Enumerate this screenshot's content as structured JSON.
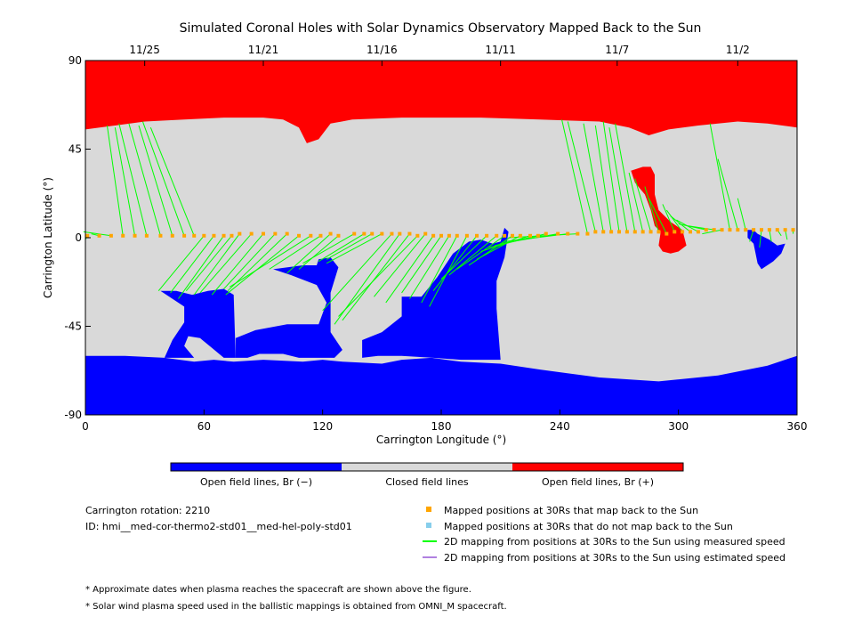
{
  "chart_data": {
    "type": "map",
    "title": "Simulated Coronal Holes with Solar Dynamics Observatory Mapped Back to the Sun",
    "xlabel": "Carrington Longitude (°)",
    "ylabel": "Carrington Latitude (°)",
    "xlim": [
      0,
      360
    ],
    "ylim": [
      -90,
      90
    ],
    "xticks": [
      0,
      60,
      120,
      180,
      240,
      300,
      360
    ],
    "yticks": [
      90,
      45,
      0,
      -45,
      -90
    ],
    "date_ticks": [
      {
        "label": "11/25",
        "lon": 30
      },
      {
        "label": "11/21",
        "lon": 90
      },
      {
        "label": "11/16",
        "lon": 150
      },
      {
        "label": "11/11",
        "lon": 210
      },
      {
        "label": "11/7",
        "lon": 269
      },
      {
        "label": "11/2",
        "lon": 330
      }
    ],
    "colors": {
      "open_negative": "#0000ff",
      "closed": "#d9d9d9",
      "open_positive": "#ff0000",
      "mapped_back": "#ffa500",
      "not_mapped": "#87ceeb",
      "measured_line": "#00ff00",
      "estimated_line": "#b080e0"
    },
    "regions": {
      "north_polar_boundary": [
        [
          0,
          55
        ],
        [
          15,
          57
        ],
        [
          30,
          59
        ],
        [
          50,
          60
        ],
        [
          70,
          61
        ],
        [
          90,
          61
        ],
        [
          100,
          60
        ],
        [
          108,
          56
        ],
        [
          112,
          48
        ],
        [
          118,
          50
        ],
        [
          124,
          58
        ],
        [
          135,
          60
        ],
        [
          160,
          61
        ],
        [
          200,
          61
        ],
        [
          230,
          60
        ],
        [
          260,
          59
        ],
        [
          275,
          56
        ],
        [
          285,
          52
        ],
        [
          295,
          55
        ],
        [
          310,
          57
        ],
        [
          330,
          59
        ],
        [
          345,
          58
        ],
        [
          360,
          56
        ]
      ],
      "south_polar_boundary": [
        [
          0,
          -60
        ],
        [
          20,
          -60
        ],
        [
          40,
          -61
        ],
        [
          55,
          -63
        ],
        [
          65,
          -62
        ],
        [
          75,
          -63
        ],
        [
          90,
          -62
        ],
        [
          110,
          -63
        ],
        [
          120,
          -62
        ],
        [
          130,
          -63
        ],
        [
          150,
          -64
        ],
        [
          160,
          -62
        ],
        [
          175,
          -61
        ],
        [
          190,
          -63
        ],
        [
          210,
          -64
        ],
        [
          230,
          -67
        ],
        [
          260,
          -71
        ],
        [
          290,
          -73
        ],
        [
          320,
          -70
        ],
        [
          345,
          -65
        ],
        [
          360,
          -60
        ]
      ],
      "negative_holes": [
        [
          [
            38,
            -27
          ],
          [
            46,
            -27
          ],
          [
            54,
            -29
          ],
          [
            62,
            -27
          ],
          [
            70,
            -26
          ],
          [
            75,
            -29
          ],
          [
            76,
            -61
          ],
          [
            70,
            -61
          ],
          [
            64,
            -56
          ],
          [
            58,
            -51
          ],
          [
            52,
            -50
          ],
          [
            50,
            -55
          ],
          [
            55,
            -61
          ],
          [
            40,
            -61
          ],
          [
            44,
            -52
          ],
          [
            50,
            -43
          ],
          [
            50,
            -35
          ]
        ],
        [
          [
            95,
            -16
          ],
          [
            110,
            -14
          ],
          [
            117,
            -14
          ],
          [
            118,
            -11
          ],
          [
            124,
            -10
          ],
          [
            128,
            -15
          ],
          [
            124,
            -28
          ],
          [
            124,
            -48
          ],
          [
            130,
            -57
          ],
          [
            126,
            -61
          ],
          [
            108,
            -61
          ],
          [
            100,
            -59
          ],
          [
            88,
            -59
          ],
          [
            82,
            -61
          ],
          [
            76,
            -61
          ],
          [
            76,
            -51
          ],
          [
            86,
            -47
          ],
          [
            102,
            -44
          ],
          [
            118,
            -44
          ],
          [
            122,
            -33
          ],
          [
            117,
            -24
          ],
          [
            104,
            -19
          ]
        ],
        [
          [
            160,
            -30
          ],
          [
            170,
            -30
          ],
          [
            178,
            -20
          ],
          [
            186,
            -8
          ],
          [
            194,
            -2
          ],
          [
            200,
            -1
          ],
          [
            206,
            -3
          ],
          [
            210,
            -2
          ],
          [
            212,
            5
          ],
          [
            214,
            3
          ],
          [
            212,
            -10
          ],
          [
            208,
            -22
          ],
          [
            208,
            -36
          ],
          [
            210,
            -62
          ],
          [
            190,
            -62
          ],
          [
            176,
            -61
          ],
          [
            160,
            -60
          ],
          [
            148,
            -60
          ],
          [
            140,
            -61
          ],
          [
            140,
            -52
          ],
          [
            150,
            -48
          ],
          [
            160,
            -40
          ]
        ],
        [
          [
            335,
            4
          ],
          [
            338,
            4
          ],
          [
            340,
            2
          ],
          [
            346,
            -1
          ],
          [
            350,
            -4
          ],
          [
            354,
            -3
          ],
          [
            352,
            -8
          ],
          [
            348,
            -12
          ],
          [
            342,
            -16
          ],
          [
            340,
            -13
          ],
          [
            338,
            -3
          ],
          [
            335,
            0
          ]
        ]
      ],
      "positive_holes": [
        [
          [
            276,
            34
          ],
          [
            282,
            36
          ],
          [
            286,
            36
          ],
          [
            288,
            32
          ],
          [
            288,
            22
          ],
          [
            290,
            14
          ],
          [
            296,
            8
          ],
          [
            302,
            4
          ],
          [
            304,
            -4
          ],
          [
            300,
            -7
          ],
          [
            296,
            -8
          ],
          [
            292,
            -7
          ],
          [
            290,
            -4
          ],
          [
            291,
            3
          ],
          [
            288,
            6
          ],
          [
            286,
            14
          ],
          [
            283,
            22
          ],
          [
            278,
            28
          ]
        ]
      ]
    },
    "mapped_points": [
      [
        1,
        1
      ],
      [
        7,
        1
      ],
      [
        13,
        1
      ],
      [
        19,
        1
      ],
      [
        25,
        1
      ],
      [
        31,
        1
      ],
      [
        38,
        1
      ],
      [
        44,
        1
      ],
      [
        50,
        1
      ],
      [
        55,
        1
      ],
      [
        60,
        1
      ],
      [
        65,
        1
      ],
      [
        70,
        1
      ],
      [
        74,
        1
      ],
      [
        78,
        2
      ],
      [
        84,
        2
      ],
      [
        90,
        2
      ],
      [
        96,
        2
      ],
      [
        102,
        2
      ],
      [
        108,
        1
      ],
      [
        114,
        1
      ],
      [
        119,
        1
      ],
      [
        124,
        2
      ],
      [
        128,
        1
      ],
      [
        136,
        2
      ],
      [
        141,
        2
      ],
      [
        145,
        2
      ],
      [
        150,
        2
      ],
      [
        155,
        2
      ],
      [
        159,
        2
      ],
      [
        164,
        2
      ],
      [
        168,
        1
      ],
      [
        172,
        2
      ],
      [
        176,
        1
      ],
      [
        180,
        1
      ],
      [
        184,
        1
      ],
      [
        188,
        1
      ],
      [
        193,
        1
      ],
      [
        198,
        1
      ],
      [
        203,
        1
      ],
      [
        208,
        1
      ],
      [
        212,
        1
      ],
      [
        216,
        1
      ],
      [
        220,
        1
      ],
      [
        225,
        1
      ],
      [
        229,
        1
      ],
      [
        233,
        2
      ],
      [
        239,
        2
      ],
      [
        244,
        2
      ],
      [
        249,
        2
      ],
      [
        254,
        2
      ],
      [
        258,
        3
      ],
      [
        262,
        3
      ],
      [
        266,
        3
      ],
      [
        270,
        3
      ],
      [
        274,
        3
      ],
      [
        278,
        3
      ],
      [
        282,
        3
      ],
      [
        286,
        3
      ],
      [
        290,
        3
      ],
      [
        294,
        2
      ],
      [
        298,
        3
      ],
      [
        302,
        3
      ],
      [
        306,
        3
      ],
      [
        310,
        3
      ],
      [
        314,
        4
      ],
      [
        318,
        4
      ],
      [
        322,
        4
      ],
      [
        326,
        4
      ],
      [
        330,
        4
      ],
      [
        334,
        4
      ],
      [
        338,
        4
      ],
      [
        342,
        4
      ],
      [
        346,
        4
      ],
      [
        350,
        4
      ],
      [
        354,
        4
      ],
      [
        358,
        4
      ]
    ],
    "mapping_lines": [
      [
        1,
        1,
        0,
        -1
      ],
      [
        7,
        1,
        3,
        2
      ],
      [
        13,
        1,
        -1,
        3
      ],
      [
        19,
        1,
        11,
        57
      ],
      [
        25,
        1,
        15,
        56
      ],
      [
        31,
        1,
        17,
        58
      ],
      [
        38,
        1,
        22,
        58
      ],
      [
        44,
        1,
        27,
        57
      ],
      [
        50,
        1,
        29,
        59
      ],
      [
        55,
        1,
        33,
        56
      ],
      [
        60,
        1,
        37,
        -27
      ],
      [
        65,
        1,
        43,
        -28
      ],
      [
        70,
        1,
        47,
        -31
      ],
      [
        74,
        1,
        51,
        -27
      ],
      [
        78,
        2,
        55,
        -29
      ],
      [
        84,
        2,
        58,
        -28
      ],
      [
        90,
        2,
        64,
        -29
      ],
      [
        96,
        2,
        70,
        -26
      ],
      [
        102,
        2,
        72,
        -27
      ],
      [
        108,
        1,
        71,
        -29
      ],
      [
        114,
        1,
        73,
        -25
      ],
      [
        119,
        1,
        93,
        -16
      ],
      [
        124,
        2,
        102,
        -18
      ],
      [
        128,
        1,
        108,
        -16
      ],
      [
        136,
        2,
        110,
        -13
      ],
      [
        141,
        2,
        118,
        -12
      ],
      [
        145,
        2,
        122,
        -11
      ],
      [
        150,
        2,
        122,
        -13
      ],
      [
        155,
        2,
        120,
        -37
      ],
      [
        159,
        2,
        126,
        -44
      ],
      [
        164,
        2,
        130,
        -42
      ],
      [
        168,
        1,
        128,
        -40
      ],
      [
        172,
        2,
        146,
        -30
      ],
      [
        176,
        1,
        152,
        -33
      ],
      [
        180,
        1,
        160,
        -28
      ],
      [
        184,
        1,
        164,
        -31
      ],
      [
        188,
        1,
        170,
        -33
      ],
      [
        193,
        1,
        174,
        -35
      ],
      [
        198,
        1,
        176,
        -27
      ],
      [
        203,
        1,
        180,
        -21
      ],
      [
        208,
        1,
        184,
        -19
      ],
      [
        212,
        1,
        188,
        -16
      ],
      [
        216,
        1,
        194,
        -14
      ],
      [
        220,
        1,
        198,
        -11
      ],
      [
        225,
        1,
        200,
        -7
      ],
      [
        229,
        1,
        204,
        -5
      ],
      [
        233,
        2,
        207,
        -4
      ],
      [
        239,
        2,
        210,
        -3
      ],
      [
        244,
        2,
        212,
        -2
      ],
      [
        249,
        2,
        214,
        0
      ],
      [
        254,
        2,
        241,
        60
      ],
      [
        258,
        3,
        244,
        59
      ],
      [
        262,
        3,
        252,
        58
      ],
      [
        266,
        3,
        258,
        57
      ],
      [
        270,
        3,
        262,
        59
      ],
      [
        274,
        3,
        265,
        56
      ],
      [
        278,
        3,
        268,
        58
      ],
      [
        282,
        3,
        275,
        33
      ],
      [
        286,
        3,
        278,
        30
      ],
      [
        290,
        3,
        283,
        26
      ],
      [
        294,
        2,
        285,
        20
      ],
      [
        298,
        3,
        292,
        17
      ],
      [
        302,
        3,
        294,
        14
      ],
      [
        306,
        3,
        296,
        11
      ],
      [
        310,
        3,
        299,
        9
      ],
      [
        314,
        4,
        300,
        7
      ],
      [
        318,
        4,
        305,
        6
      ],
      [
        322,
        4,
        312,
        2
      ],
      [
        326,
        4,
        316,
        58
      ],
      [
        330,
        4,
        320,
        40
      ],
      [
        334,
        4,
        330,
        20
      ],
      [
        338,
        4,
        336,
        -2
      ],
      [
        342,
        4,
        341,
        -5
      ],
      [
        346,
        4,
        347,
        -2
      ],
      [
        350,
        4,
        352,
        1
      ],
      [
        354,
        4,
        355,
        -1
      ],
      [
        358,
        4,
        358,
        2
      ]
    ]
  },
  "color_bar": {
    "labels": [
      "Open field lines, Br (−)",
      "Closed field lines",
      "Open field lines, Br (+)"
    ]
  },
  "info": {
    "rotation": "Carrington rotation: 2210",
    "id": "ID: hmi__med-cor-thermo2-std01__med-hel-poly-std01"
  },
  "legend": {
    "mapped_back": "Mapped positions at 30Rs that map back to the Sun",
    "not_mapped": "Mapped positions at 30Rs that do not map back to the Sun",
    "measured": "2D mapping from positions at 30Rs to the Sun using measured speed",
    "estimated": "2D mapping from positions at 30Rs to the Sun using estimated speed"
  },
  "footnotes": [
    "* Approximate dates when plasma reaches the spacecraft are shown above the figure.",
    "* Solar wind plasma speed used in the ballistic mappings is obtained from OMNI_M spacecraft."
  ]
}
